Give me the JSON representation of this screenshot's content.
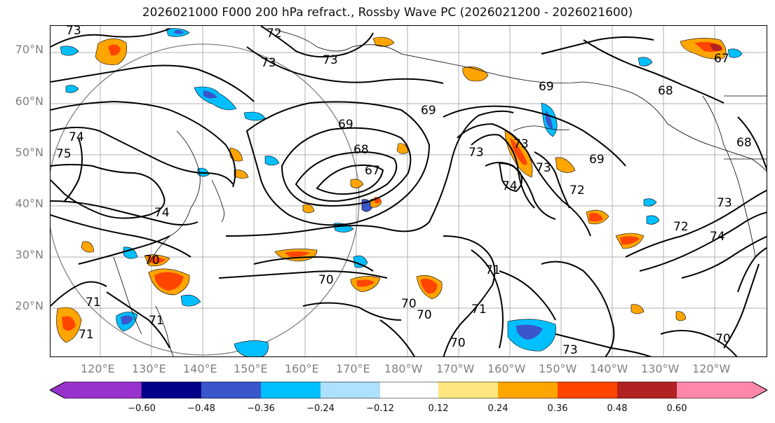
{
  "title": "2026021000 F000 200 hPa refract., Rossby Wave PC (2026021200 - 2026021600)",
  "lat_labels": [
    "70°N",
    "60°N",
    "50°N",
    "40°N",
    "30°N",
    "20°N"
  ],
  "lon_labels": [
    "120°E",
    "130°E",
    "140°E",
    "150°E",
    "160°E",
    "170°E",
    "180°W",
    "170°W",
    "160°W",
    "150°W",
    "140°W",
    "130°W",
    "120°W"
  ],
  "contour_labels": [
    "73",
    "72",
    "73",
    "73",
    "69",
    "68",
    "67",
    "69",
    "69",
    "68",
    "67",
    "73",
    "73",
    "74",
    "73",
    "72",
    "69",
    "68",
    "74",
    "70",
    "70",
    "71",
    "70",
    "70",
    "71",
    "71",
    "71",
    "70",
    "71",
    "73",
    "74",
    "72",
    "70",
    "73",
    "75",
    "74"
  ],
  "colorbar": {
    "ticks": [
      "−0.60",
      "−0.48",
      "−0.36",
      "−0.24",
      "−0.12",
      "0.12",
      "0.24",
      "0.36",
      "0.48",
      "0.60"
    ],
    "colors": [
      "#9932cc",
      "#00008b",
      "#3a56cc",
      "#00bfff",
      "#b0e0ff",
      "#ffffff",
      "#ffe680",
      "#ffa500",
      "#ff4500",
      "#b22222",
      "#ff88aa",
      "#ff88aa"
    ]
  },
  "colors": {
    "orange": "#ffa500",
    "red": "#ff4500",
    "yellow": "#ffe680",
    "lightblue": "#00bfff",
    "paleblue": "#b0e0ff",
    "blue": "#3a56cc",
    "grid": "#b0b0b0",
    "circle": "#808080"
  }
}
